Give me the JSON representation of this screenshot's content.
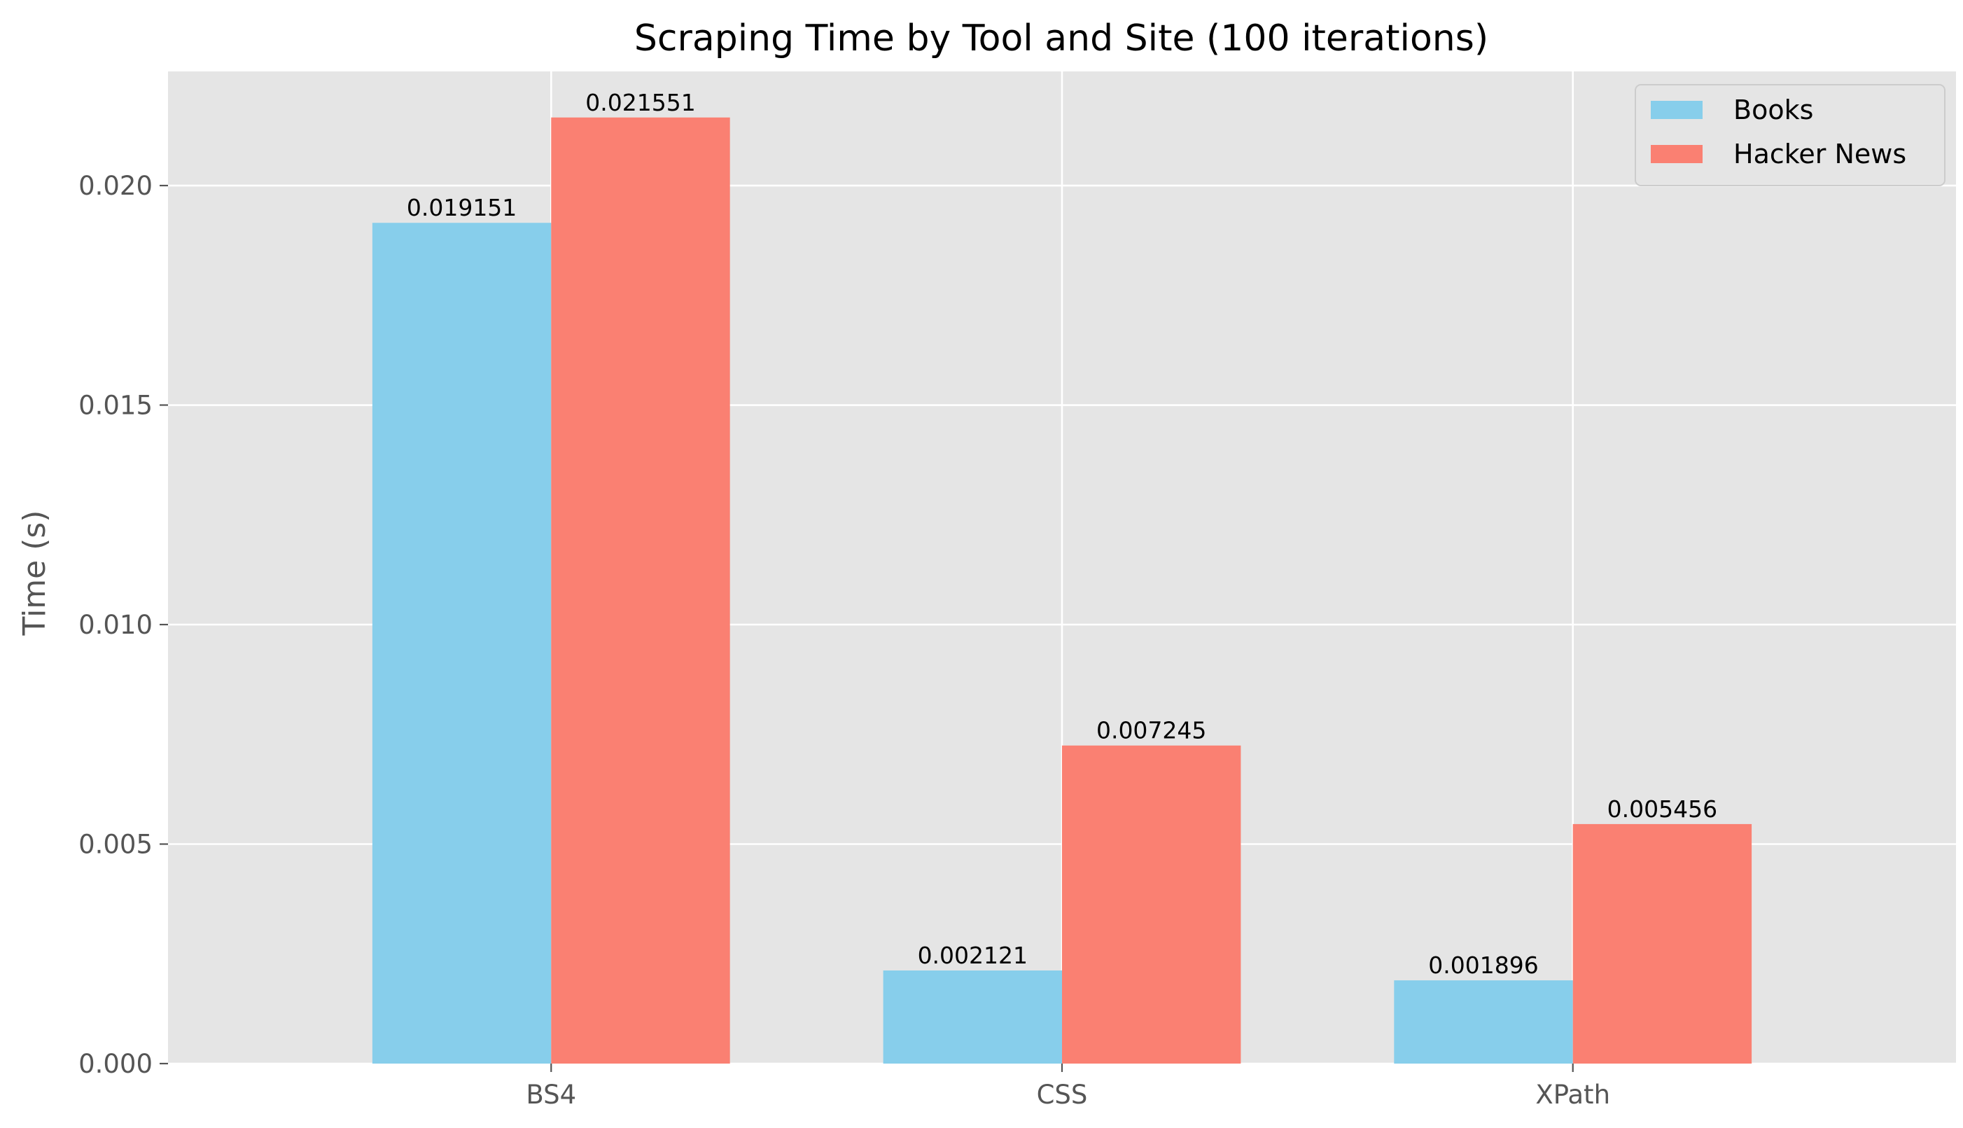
{
  "chart_data": {
    "type": "bar",
    "title": "Scraping Time by Tool and Site (100 iterations)",
    "xlabel": "",
    "ylabel": "Time (s)",
    "categories": [
      "BS4",
      "CSS",
      "XPath"
    ],
    "series": [
      {
        "name": "Books",
        "color": "#87ceeb",
        "values": [
          0.019151,
          0.002121,
          0.001896
        ],
        "labels": [
          "0.019151",
          "0.002121",
          "0.001896"
        ]
      },
      {
        "name": "Hacker News",
        "color": "#fa8072",
        "values": [
          0.021551,
          0.007245,
          0.005456
        ],
        "labels": [
          "0.021551",
          "0.007245",
          "0.005456"
        ]
      }
    ],
    "ylim": [
      0,
      0.0226
    ],
    "yticks": [
      0.0,
      0.005,
      0.01,
      0.015,
      0.02
    ],
    "ytick_labels": [
      "0.000",
      "0.005",
      "0.010",
      "0.015",
      "0.020"
    ],
    "grid": true,
    "style": "ggplot",
    "background_color": "#e5e5e5",
    "grid_color": "#ffffff",
    "legend_position": "top-right"
  }
}
